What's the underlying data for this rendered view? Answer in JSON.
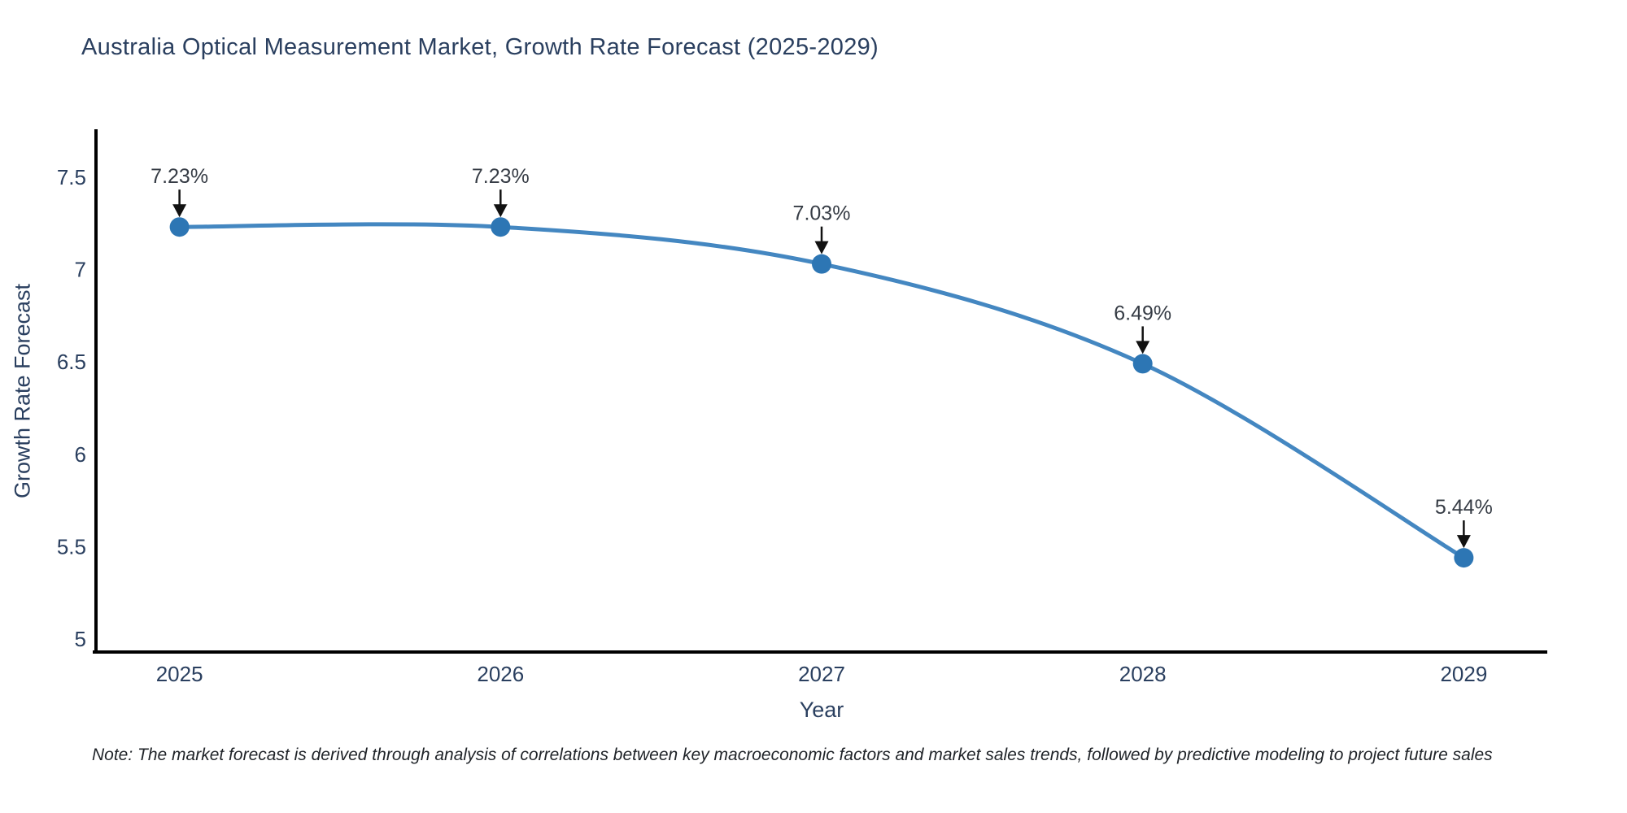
{
  "title": "Australia Optical Measurement Market, Growth Rate Forecast (2025-2029)",
  "note": "Note: The market forecast is derived through analysis of correlations between key macroeconomic factors and market sales trends, followed by predictive modeling to project future sales",
  "chart_data": {
    "type": "line",
    "title": "Australia Optical Measurement Market, Growth Rate Forecast (2025-2029)",
    "xlabel": "Year",
    "ylabel": "Growth Rate Forecast",
    "x": [
      2025,
      2026,
      2027,
      2028,
      2029
    ],
    "values": [
      7.23,
      7.23,
      7.03,
      6.49,
      5.44
    ],
    "point_labels": [
      "7.23%",
      "7.23%",
      "7.03%",
      "6.49%",
      "5.44%"
    ],
    "x_ticks": [
      "2025",
      "2026",
      "2027",
      "2028",
      "2029"
    ],
    "y_ticks": [
      7.5,
      7,
      6.5,
      6,
      5.5,
      5
    ],
    "xlim": [
      2024.74,
      2029.26
    ],
    "ylim": [
      4.93,
      7.75
    ],
    "grid": false,
    "legend": false,
    "line_shape": "spline",
    "colors": {
      "line": "#4487c1",
      "marker": "#2d76b4",
      "axis": "#000000",
      "tick_text": "#2a3f5f",
      "annotation_text": "#363c45",
      "arrow": "#111111"
    }
  }
}
